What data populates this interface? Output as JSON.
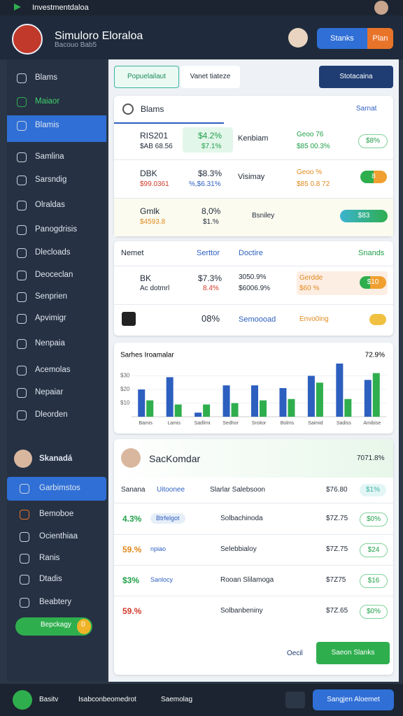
{
  "status_bar": {
    "app": "Investmentdaloa"
  },
  "header": {
    "title": "Simuloro Eloraloa",
    "subtitle": "Bacouo Bab5",
    "button_primary": "Stanks",
    "button_secondary": "Plan"
  },
  "sidebar": {
    "items": [
      "Blams",
      "Maiaor",
      "Blamis",
      "Samlina",
      "Sarsndig",
      "Olraldas",
      "Panogdrisis",
      "Dlecloads",
      "Deoceclan",
      "Senprien",
      "Apvimigr",
      "Nenpaia",
      "Acemolas",
      "Nepaiar",
      "Dleorden"
    ],
    "profile": "Skanadá",
    "lower_items": [
      "Garbimstos",
      "Bemoboe",
      "Ocienthiaa",
      "Ranis",
      "Dtadis",
      "Beabtery"
    ],
    "user_chip": "Bepckagy",
    "user_badge": "0"
  },
  "tabs": [
    "Popuelailaut",
    "Vanet tiateze"
  ],
  "dropdown": "Stotacaina",
  "search": {
    "placeholder": "Blams",
    "filter": "Sarnat"
  },
  "stocks": [
    {
      "name": "RIS201",
      "sub": "$AB 68.56",
      "change": "$4.2%",
      "change_sub": "$7.1%",
      "name2": "Kenbiam",
      "val": "Geoo 76",
      "val_sub": "$85 00.3%",
      "pill": "$8%"
    },
    {
      "name": "DBK",
      "sub": "$99.0361",
      "change": "$8.3%",
      "change_sub": "%,$6.31%",
      "name2": "Visimay",
      "val": "Geoo %",
      "val_sub": "$85 0.8 72",
      "pill": "8"
    },
    {
      "name": "Gmlk",
      "sub": "$4593.8",
      "change": "8,0%",
      "change_sub": "$1.%",
      "name2": "Bsniley",
      "pill": "$83"
    }
  ],
  "table": {
    "headers": [
      "Nemet",
      "Serttor",
      "Doctire",
      "Snands"
    ],
    "row1": {
      "name": "BK",
      "sub": "Ac dotmrl",
      "c1": "$7.3%",
      "c1_sub": "8.4%",
      "c2": "3050.9%",
      "c2_sub": "$6006.9%",
      "tag": "Gerdde",
      "tag_sub": "$60 %",
      "pill": "$10"
    },
    "row2": {
      "c1": "08%",
      "c2": "Semoooad",
      "tag": "Envo0ing"
    }
  },
  "chart": {
    "title": "Sarhes Iroamalar",
    "badge": "72.9%",
    "categories": [
      "Bamis",
      "Lamis",
      "Sadlimi",
      "Sedhor",
      "Sroitor",
      "Bolms",
      "Saimid",
      "Sadiss",
      "Amibise"
    ],
    "series": [
      {
        "color": "#2d5fbf",
        "values": [
          20,
          29,
          3,
          23,
          23,
          21,
          30,
          39,
          27
        ]
      },
      {
        "color": "#2fae4e",
        "values": [
          12,
          9,
          9,
          10,
          12,
          13,
          25,
          13,
          32
        ]
      }
    ],
    "ylim": [
      0,
      40
    ],
    "yticks": [
      {
        "value": 10,
        "label": "$10"
      },
      {
        "value": 20,
        "label": "$20"
      },
      {
        "value": 30,
        "label": "$30"
      }
    ]
  },
  "list": {
    "title": "SacKomdar",
    "value": "7071.8%",
    "filters": [
      "Sanana",
      "Uitoonee",
      "Slarlar Salebsoon"
    ],
    "header_value": "$76.80",
    "header_pill": "$1%",
    "rows": [
      {
        "pct": "4.3%",
        "tag": "Btrfelgot",
        "name": "Solbachinoda",
        "value": "$7Z.75",
        "pill": "$0%"
      },
      {
        "pct": "59.%",
        "tag": "npiao",
        "name": "Selebbialoy",
        "value": "$7Z.75",
        "pill": "$24"
      },
      {
        "pct": "$3%",
        "tag": "Sanlocy",
        "name": "Rooan Slilamoga",
        "value": "$7Z75",
        "pill": "$16"
      },
      {
        "pct": "59.%",
        "tag": "",
        "name": "Solbanbeniny",
        "value": "$7Z.65",
        "pill": "$0%"
      }
    ],
    "cancel": "Oecil",
    "confirm": "Saeon Slanks"
  },
  "bottom_bar": [
    "Basitv",
    "Isabconbeomedrot",
    "Saemolag",
    "Sangjen Aloemet"
  ]
}
